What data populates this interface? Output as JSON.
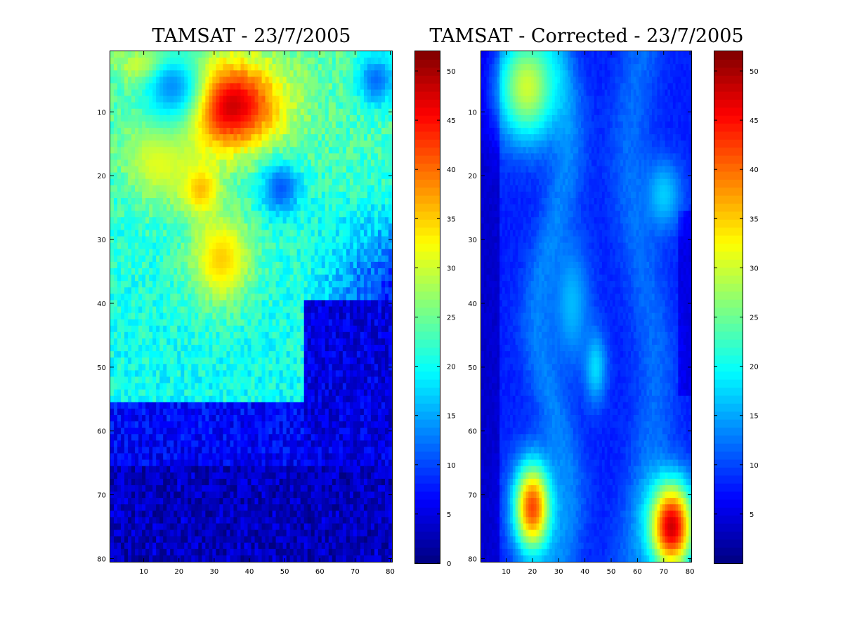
{
  "chart_data": [
    {
      "type": "heatmap",
      "title": "TAMSAT - 23/7/2005",
      "xlabel": "",
      "ylabel": "",
      "xlim": [
        1,
        80
      ],
      "ylim": [
        1,
        80
      ],
      "y_direction": "reversed (row 1 at top)",
      "colormap": "jet",
      "color_range": [
        0,
        52
      ],
      "x_ticks": [
        "10",
        "20",
        "30",
        "40",
        "50",
        "60",
        "70",
        "80"
      ],
      "y_ticks": [
        "10",
        "20",
        "30",
        "40",
        "50",
        "60",
        "70",
        "80"
      ],
      "colorbar_ticks": [
        "0",
        "5",
        "10",
        "15",
        "20",
        "25",
        "30",
        "35",
        "40",
        "45",
        "50"
      ],
      "colorbar_tick_values": [
        0,
        5,
        10,
        15,
        20,
        25,
        30,
        35,
        40,
        45,
        50
      ],
      "grid": false,
      "colorbar_position": "right",
      "smoothed": false,
      "features": [
        {
          "x": 33,
          "y": 9,
          "value": 50,
          "sx": 11,
          "sy": 5
        },
        {
          "x": 14,
          "y": 3,
          "value": 43,
          "sx": 6,
          "sy": 2
        },
        {
          "x": 26,
          "y": 22,
          "value": 37,
          "sx": 4,
          "sy": 3
        },
        {
          "x": 32,
          "y": 33,
          "value": 35,
          "sx": 6,
          "sy": 5
        },
        {
          "x": 15,
          "y": 17,
          "value": 32,
          "sx": 7,
          "sy": 5
        },
        {
          "x": 18,
          "y": 6,
          "value": 14,
          "sx": 7,
          "sy": 5
        },
        {
          "x": 49,
          "y": 22,
          "value": 11,
          "sx": 4,
          "sy": 3
        },
        {
          "x": 76,
          "y": 5,
          "value": 12,
          "sx": 4,
          "sy": 3
        }
      ]
    },
    {
      "type": "heatmap",
      "title": "TAMSAT - Corrected - 23/7/2005",
      "xlabel": "",
      "ylabel": "",
      "xlim": [
        1,
        80
      ],
      "ylim": [
        1,
        80
      ],
      "y_direction": "reversed (row 1 at top)",
      "colormap": "jet",
      "color_range": [
        0,
        52
      ],
      "x_ticks": [
        "10",
        "20",
        "30",
        "40",
        "50",
        "60",
        "70",
        "80"
      ],
      "y_ticks": [
        "10",
        "20",
        "30",
        "40",
        "50",
        "60",
        "70",
        "80"
      ],
      "colorbar_ticks": [
        "5",
        "10",
        "15",
        "20",
        "25",
        "30",
        "35",
        "40",
        "45",
        "50"
      ],
      "colorbar_tick_values": [
        5,
        10,
        15,
        20,
        25,
        30,
        35,
        40,
        45,
        50
      ],
      "grid": false,
      "colorbar_position": "right",
      "smoothed": true,
      "features": [
        {
          "x": 18,
          "y": 6,
          "value": 30,
          "sx": 8,
          "sy": 6
        },
        {
          "x": 20,
          "y": 72,
          "value": 42,
          "sx": 5,
          "sy": 5
        },
        {
          "x": 73,
          "y": 75,
          "value": 48,
          "sx": 6,
          "sy": 5
        },
        {
          "x": 44,
          "y": 50,
          "value": 18,
          "sx": 3,
          "sy": 4
        },
        {
          "x": 70,
          "y": 23,
          "value": 17,
          "sx": 5,
          "sy": 4
        },
        {
          "x": 35,
          "y": 40,
          "value": 16,
          "sx": 5,
          "sy": 7
        }
      ]
    }
  ]
}
